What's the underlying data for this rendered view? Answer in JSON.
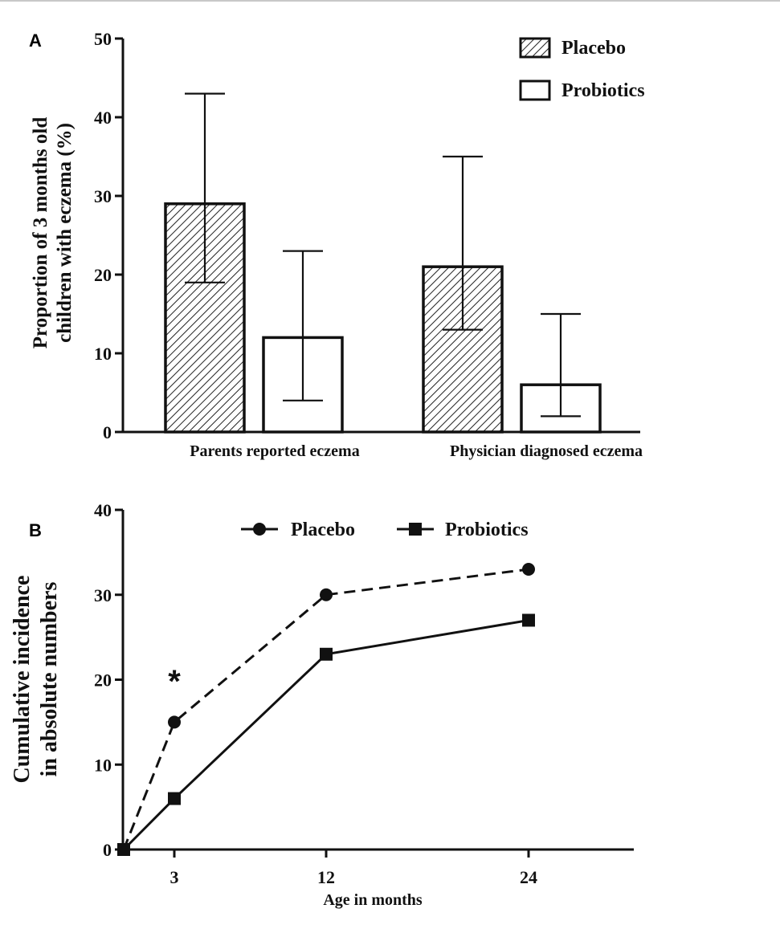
{
  "chart_data": [
    {
      "panel": "A",
      "type": "bar",
      "ylabel_lines": [
        "Proportion of 3 months old",
        "children with eczema (%)"
      ],
      "xlabel": "",
      "ylim": [
        0,
        50
      ],
      "yticks": [
        0,
        10,
        20,
        30,
        40,
        50
      ],
      "categories": [
        "Parents reported eczema",
        "Physician diagnosed eczema"
      ],
      "series": [
        {
          "name": "Placebo",
          "values": [
            29,
            21
          ],
          "err_low": [
            19,
            13
          ],
          "err_high": [
            43,
            35
          ],
          "pattern": "hatched"
        },
        {
          "name": "Probiotics",
          "values": [
            12,
            6
          ],
          "err_low": [
            4,
            2
          ],
          "err_high": [
            23,
            15
          ],
          "pattern": "open"
        }
      ],
      "legend": "top-right"
    },
    {
      "panel": "B",
      "type": "line",
      "ylabel_lines": [
        "Cumulative incidence",
        "in absolute numbers"
      ],
      "xlabel": "Age in months",
      "ylim": [
        0,
        40
      ],
      "yticks": [
        0,
        10,
        20,
        30,
        40
      ],
      "xticks": [
        3,
        12,
        24
      ],
      "xlim": [
        0,
        30
      ],
      "series": [
        {
          "name": "Placebo",
          "marker": "circle",
          "dash": "dashed",
          "x": [
            0,
            3,
            12,
            24
          ],
          "y": [
            0,
            15,
            30,
            33
          ]
        },
        {
          "name": "Probiotics",
          "marker": "square",
          "dash": "solid",
          "x": [
            0,
            3,
            12,
            24
          ],
          "y": [
            0,
            6,
            23,
            27
          ]
        }
      ],
      "annotations": [
        {
          "text": "*",
          "x": 3
        }
      ],
      "legend": "top-center"
    }
  ]
}
